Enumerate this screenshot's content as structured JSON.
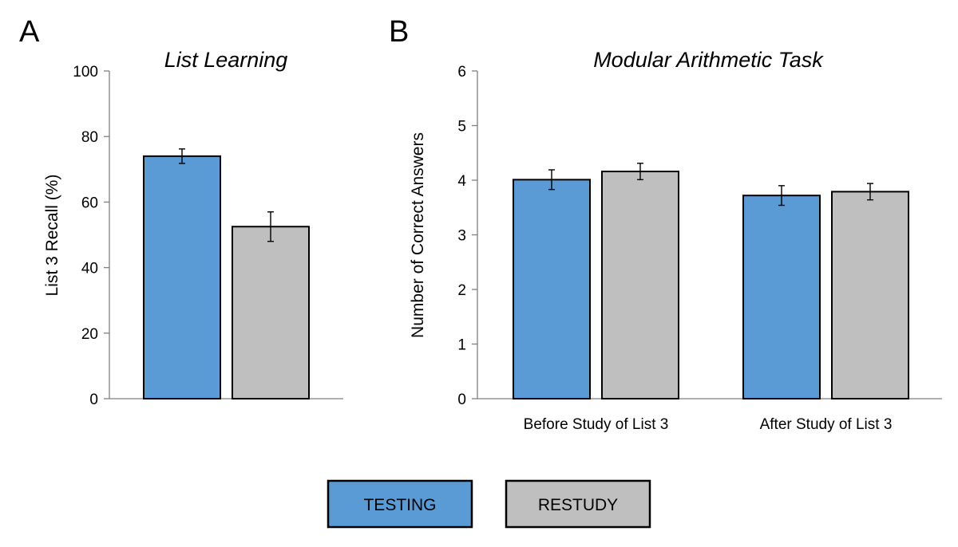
{
  "colors": {
    "testing": "#5B9BD5",
    "restudy": "#BFBFBF"
  },
  "legend": [
    {
      "name": "TESTING",
      "color": "#5B9BD5"
    },
    {
      "name": "RESTUDY",
      "color": "#BFBFBF"
    }
  ],
  "chart_data": [
    {
      "panel": "A",
      "type": "bar",
      "title": "List Learning",
      "xlabel": "",
      "ylabel": "List 3 Recall (%)",
      "ylim": [
        0,
        100
      ],
      "yticks": [
        0,
        20,
        40,
        60,
        80,
        100
      ],
      "categories": [
        ""
      ],
      "series": [
        {
          "name": "TESTING",
          "values": [
            74
          ],
          "error": [
            2.2
          ]
        },
        {
          "name": "RESTUDY",
          "values": [
            52.5
          ],
          "error": [
            4.5
          ]
        }
      ]
    },
    {
      "panel": "B",
      "type": "bar",
      "title": "Modular Arithmetic Task",
      "xlabel": "",
      "ylabel": "Number of Correct Answers",
      "ylim": [
        0,
        6
      ],
      "yticks": [
        0,
        1,
        2,
        3,
        4,
        5,
        6
      ],
      "categories": [
        "Before Study of List 3",
        "After Study of List 3"
      ],
      "series": [
        {
          "name": "TESTING",
          "values": [
            4.01,
            3.72
          ],
          "error": [
            0.18,
            0.18
          ]
        },
        {
          "name": "RESTUDY",
          "values": [
            4.16,
            3.79
          ],
          "error": [
            0.15,
            0.15
          ]
        }
      ]
    }
  ]
}
